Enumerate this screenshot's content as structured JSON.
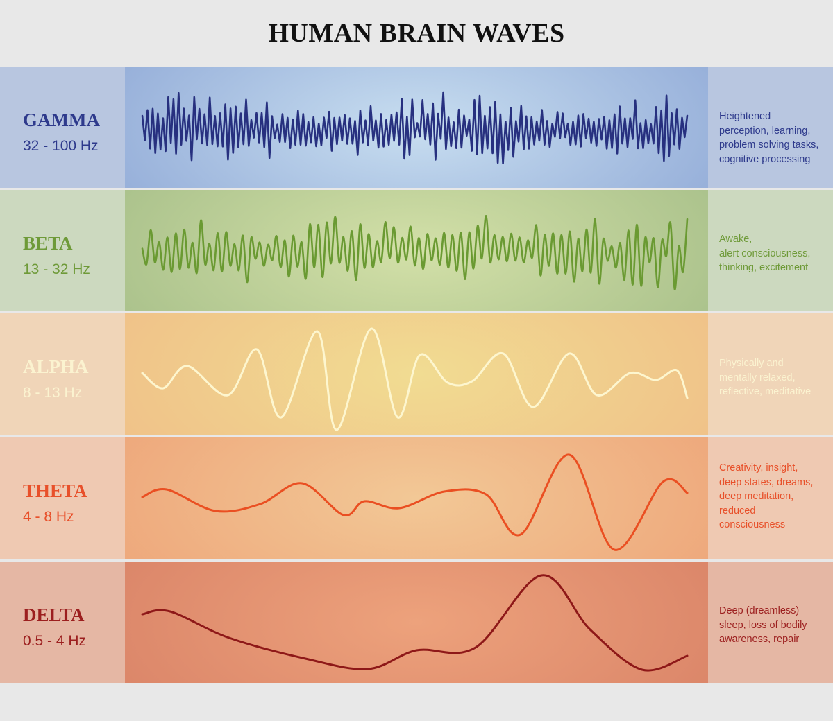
{
  "title": "HUMAN BRAIN WAVES",
  "bands": [
    {
      "id": "gamma",
      "name": "GAMMA",
      "frequency": "32 - 100 Hz",
      "description": [
        "Heightened",
        "perception, learning,",
        "problem solving tasks,",
        "cognitive processing"
      ],
      "colors": {
        "label": "#2e3a8c",
        "desc": "#2e3a8c",
        "wave": "#27307f",
        "side": "#b8c6e0",
        "center": "#c8def0",
        "edge": "#93acd8"
      }
    },
    {
      "id": "beta",
      "name": "BETA",
      "frequency": "13 - 32 Hz",
      "description": [
        "Awake,",
        "alert consciousness,",
        "thinking, excitement"
      ],
      "colors": {
        "label": "#6e9a38",
        "desc": "#6e9a38",
        "wave": "#6a9a32",
        "side": "#ccd9bf",
        "center": "#d3e0a8",
        "edge": "#a8c08a"
      }
    },
    {
      "id": "alpha",
      "name": "ALPHA",
      "frequency": "8 - 13 Hz",
      "description": [
        "Physically and",
        "mentally relaxed,",
        "reflective, meditative"
      ],
      "colors": {
        "label": "#fbf3d0",
        "desc": "#fbf3d0",
        "wave": "#fdf6cf",
        "side": "#f0d5b8",
        "center": "#f1dc92",
        "edge": "#f0c088"
      }
    },
    {
      "id": "theta",
      "name": "THETA",
      "frequency": "4 - 8 Hz",
      "description": [
        "Creativity, insight,",
        "deep states, dreams,",
        "deep meditation,",
        "reduced",
        "consciousness"
      ],
      "colors": {
        "label": "#e8502a",
        "desc": "#e8502a",
        "wave": "#ea4f22",
        "side": "#efc9b2",
        "center": "#f2c896",
        "edge": "#eea67a"
      }
    },
    {
      "id": "delta",
      "name": "DELTA",
      "frequency": "0.5 - 4 Hz",
      "description": [
        "Deep (dreamless)",
        "sleep, loss of bodily",
        "awareness, repair"
      ],
      "colors": {
        "label": "#9c1f1f",
        "desc": "#9c1f1f",
        "wave": "#8e1818",
        "side": "#e5b7a4",
        "center": "#eda27c",
        "edge": "#da8468"
      }
    }
  ]
}
